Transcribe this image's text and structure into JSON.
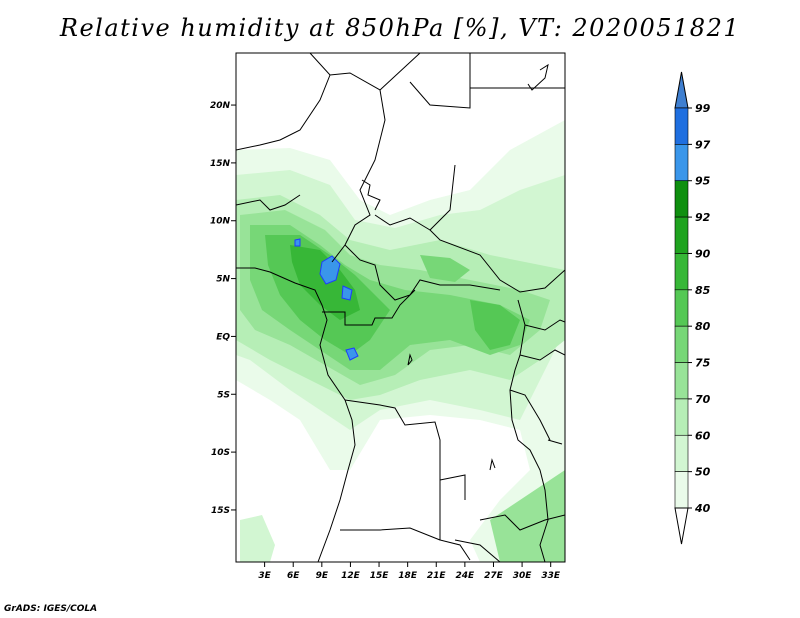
{
  "title": "Relative humidity at 850hPa [%], VT: 2020051821",
  "footer": "GrADS: IGES/COLA",
  "map": {
    "lat_labels": [
      "20N",
      "15N",
      "10N",
      "5N",
      "EQ",
      "5S",
      "10S",
      "15S"
    ],
    "lat_values": [
      20,
      15,
      10,
      5,
      0,
      -5,
      -10,
      -15
    ],
    "lon_labels": [
      "3E",
      "6E",
      "9E",
      "12E",
      "15E",
      "18E",
      "21E",
      "24E",
      "27E",
      "30E",
      "33E"
    ],
    "lon_values": [
      3,
      6,
      9,
      12,
      15,
      18,
      21,
      24,
      27,
      30,
      33
    ],
    "lon_range": [
      0,
      34.5
    ],
    "lat_range": [
      -19.5,
      24.5
    ]
  },
  "colorbar": {
    "labels": [
      "99",
      "97",
      "95",
      "92",
      "90",
      "85",
      "80",
      "75",
      "70",
      "60",
      "50",
      "40"
    ],
    "colors": [
      "#1e3cff",
      "#1f6fe0",
      "#3a96ea",
      "#0f8f0f",
      "#1fa31f",
      "#37b737",
      "#55c855",
      "#77d777",
      "#98e398",
      "#b6eeb6",
      "#d2f6d2",
      "#eafbea",
      "#ffffff"
    ],
    "top_color": "#3f7fd0",
    "bottom_color": "#ffffff"
  }
}
